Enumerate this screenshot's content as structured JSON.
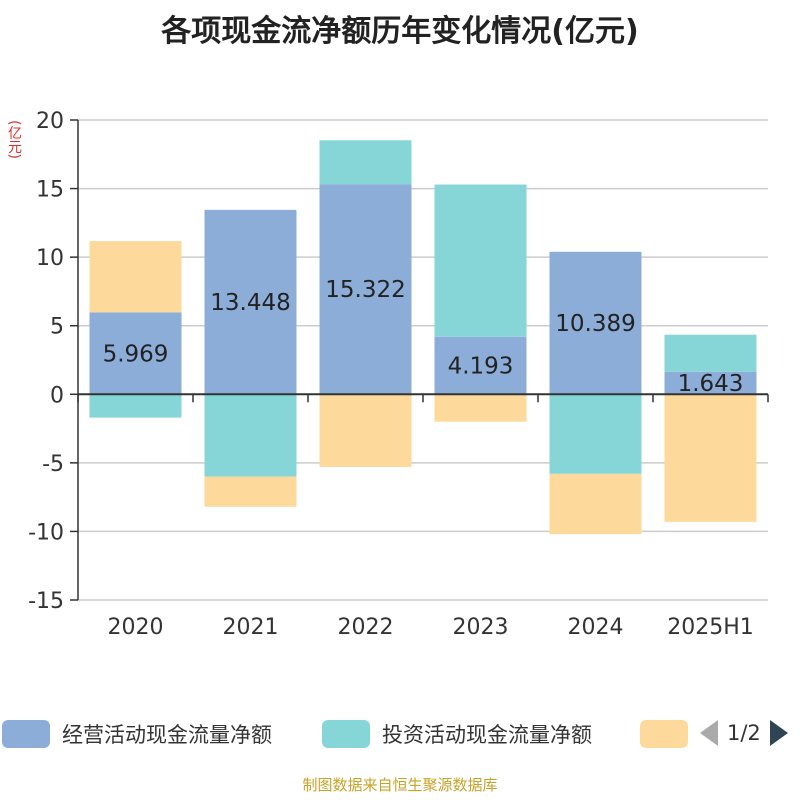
{
  "title": "各项现金流净额历年变化情况(亿元)",
  "unit_label": "(亿元)",
  "source": "制图数据来自恒生聚源数据库",
  "colors": {
    "operating": "#8dadd9",
    "investing": "#86d6d8",
    "financing": "#fdd99b",
    "axis": "#333333",
    "grid": "#cccccc"
  },
  "legend": {
    "items": [
      {
        "label": "经营活动现金流量净额",
        "color": "#8dadd9"
      },
      {
        "label": "投资活动现金流量净额",
        "color": "#86d6d8"
      },
      {
        "label": "",
        "color": "#fdd99b"
      }
    ],
    "page": "1/2"
  },
  "chart_data": {
    "type": "bar",
    "stacked": true,
    "categories": [
      "2020",
      "2021",
      "2022",
      "2023",
      "2024",
      "2025H1"
    ],
    "series": [
      {
        "name": "经营活动现金流量净额",
        "values": [
          5.969,
          13.448,
          15.322,
          4.193,
          10.389,
          1.643
        ],
        "labels": [
          "5.969",
          "13.448",
          "15.322",
          "4.193",
          "10.389",
          "1.643"
        ]
      },
      {
        "name": "投资活动现金流量净额",
        "values": [
          -1.7,
          -6.0,
          3.2,
          11.1,
          -5.8,
          2.7
        ]
      },
      {
        "name": "",
        "values": [
          5.2,
          -2.2,
          -5.3,
          -2.0,
          -4.4,
          -9.3
        ]
      }
    ],
    "ylim": [
      -15,
      20
    ],
    "yticks": [
      -15,
      -10,
      -5,
      0,
      5,
      10,
      15,
      20
    ],
    "grid": true
  }
}
